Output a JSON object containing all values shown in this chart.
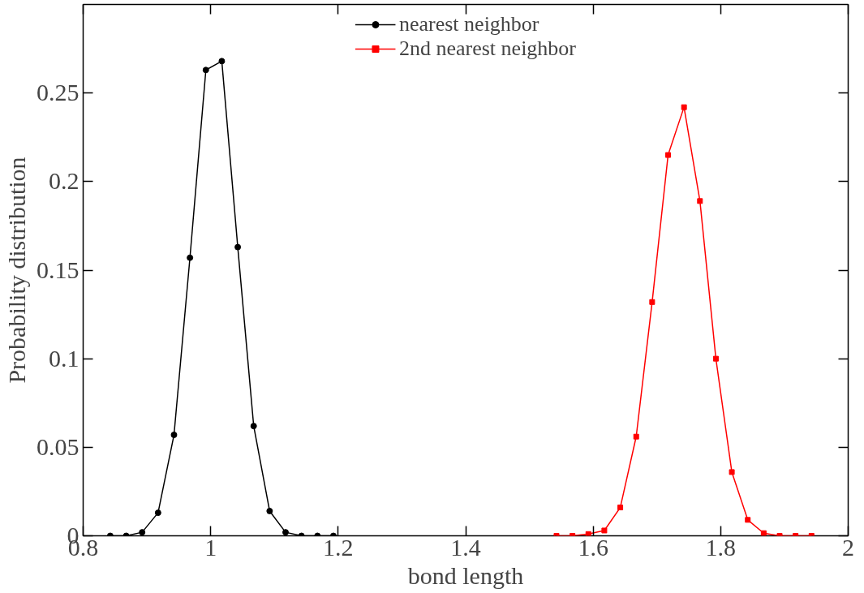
{
  "chart_data": {
    "type": "line",
    "xlabel": "bond length",
    "ylabel": "Probability distribution",
    "xlim": [
      0.8,
      2.0
    ],
    "ylim": [
      0,
      0.3
    ],
    "xticks": [
      0.8,
      1,
      1.2,
      1.4,
      1.6,
      1.8,
      2
    ],
    "yticks": [
      0,
      0.05,
      0.1,
      0.15,
      0.2,
      0.25
    ],
    "grid": false,
    "legend": "top",
    "line_style": "solid",
    "series": [
      {
        "name": "nearest neighbor",
        "color": "#000000",
        "marker": "circle",
        "x": [
          0.8425,
          0.8675,
          0.8925,
          0.9175,
          0.9425,
          0.9675,
          0.9925,
          1.0175,
          1.0425,
          1.0675,
          1.0925,
          1.1175,
          1.1425,
          1.1675,
          1.1925
        ],
        "values": [
          0,
          0,
          0.002,
          0.013,
          0.057,
          0.157,
          0.263,
          0.268,
          0.163,
          0.062,
          0.014,
          0.002,
          0,
          0,
          0
        ]
      },
      {
        "name": "2nd nearest neighbor",
        "color": "#ff0000",
        "marker": "square",
        "x": [
          1.5425,
          1.5675,
          1.5925,
          1.6175,
          1.6425,
          1.6675,
          1.6925,
          1.7175,
          1.7425,
          1.7675,
          1.7925,
          1.8175,
          1.8425,
          1.8675,
          1.8925,
          1.9175,
          1.9425
        ],
        "values": [
          0,
          0,
          0.001,
          0.003,
          0.016,
          0.056,
          0.132,
          0.215,
          0.242,
          0.189,
          0.1,
          0.036,
          0.009,
          0.0015,
          0,
          0,
          0
        ]
      }
    ]
  }
}
